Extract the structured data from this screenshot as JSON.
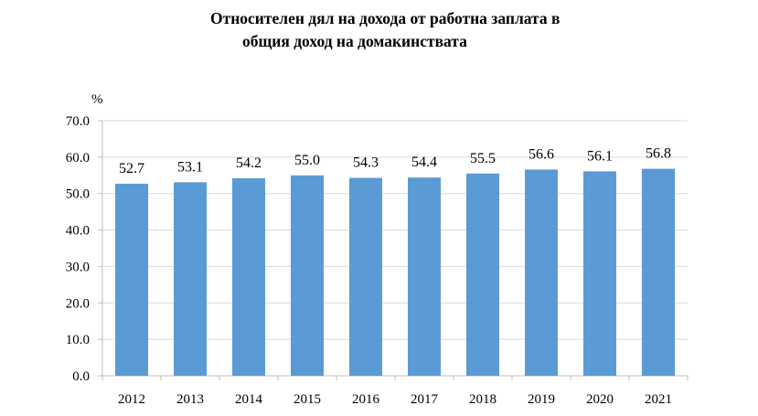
{
  "chart_data": {
    "type": "bar",
    "title": [
      "Относителен дял на дохода от работна заплата в",
      "общия доход на домакинствата"
    ],
    "ylabel": "%",
    "xlabel": "",
    "categories": [
      "2012",
      "2013",
      "2014",
      "2015",
      "2016",
      "2017",
      "2018",
      "2019",
      "2020",
      "2021"
    ],
    "values": [
      52.7,
      53.1,
      54.2,
      55.0,
      54.3,
      54.4,
      55.5,
      56.6,
      56.1,
      56.8
    ],
    "ylim": [
      0,
      70
    ],
    "yticks": [
      "0.0",
      "10.0",
      "20.0",
      "30.0",
      "40.0",
      "50.0",
      "60.0",
      "70.0"
    ],
    "grid": true,
    "data_labels": true,
    "bar_color": "#5b9bd5"
  }
}
